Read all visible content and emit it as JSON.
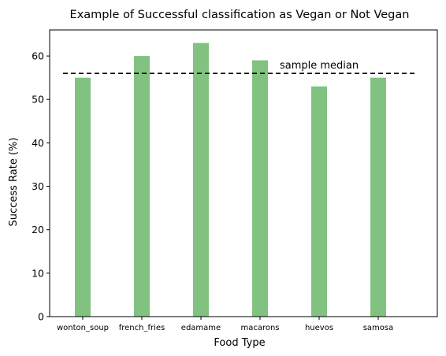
{
  "colors": {
    "bar": "#81c281",
    "median_line": "#000000",
    "axes": "#000000",
    "background": "#ffffff"
  },
  "chart_data": {
    "type": "bar",
    "title": "Example of Successful classification as Vegan or Not Vegan",
    "xlabel": "Food Type",
    "ylabel": "Success Rate (%)",
    "categories": [
      "wonton_soup",
      "french_fries",
      "edamame",
      "macarons",
      "huevos",
      "samosa"
    ],
    "values": [
      55,
      60,
      63,
      59,
      53,
      55
    ],
    "ylim": [
      0,
      66
    ],
    "yticks": [
      0,
      10,
      20,
      30,
      40,
      50,
      60
    ],
    "grid": false,
    "reference_line": {
      "label": "sample median",
      "value": 56,
      "style": "dashed"
    }
  }
}
